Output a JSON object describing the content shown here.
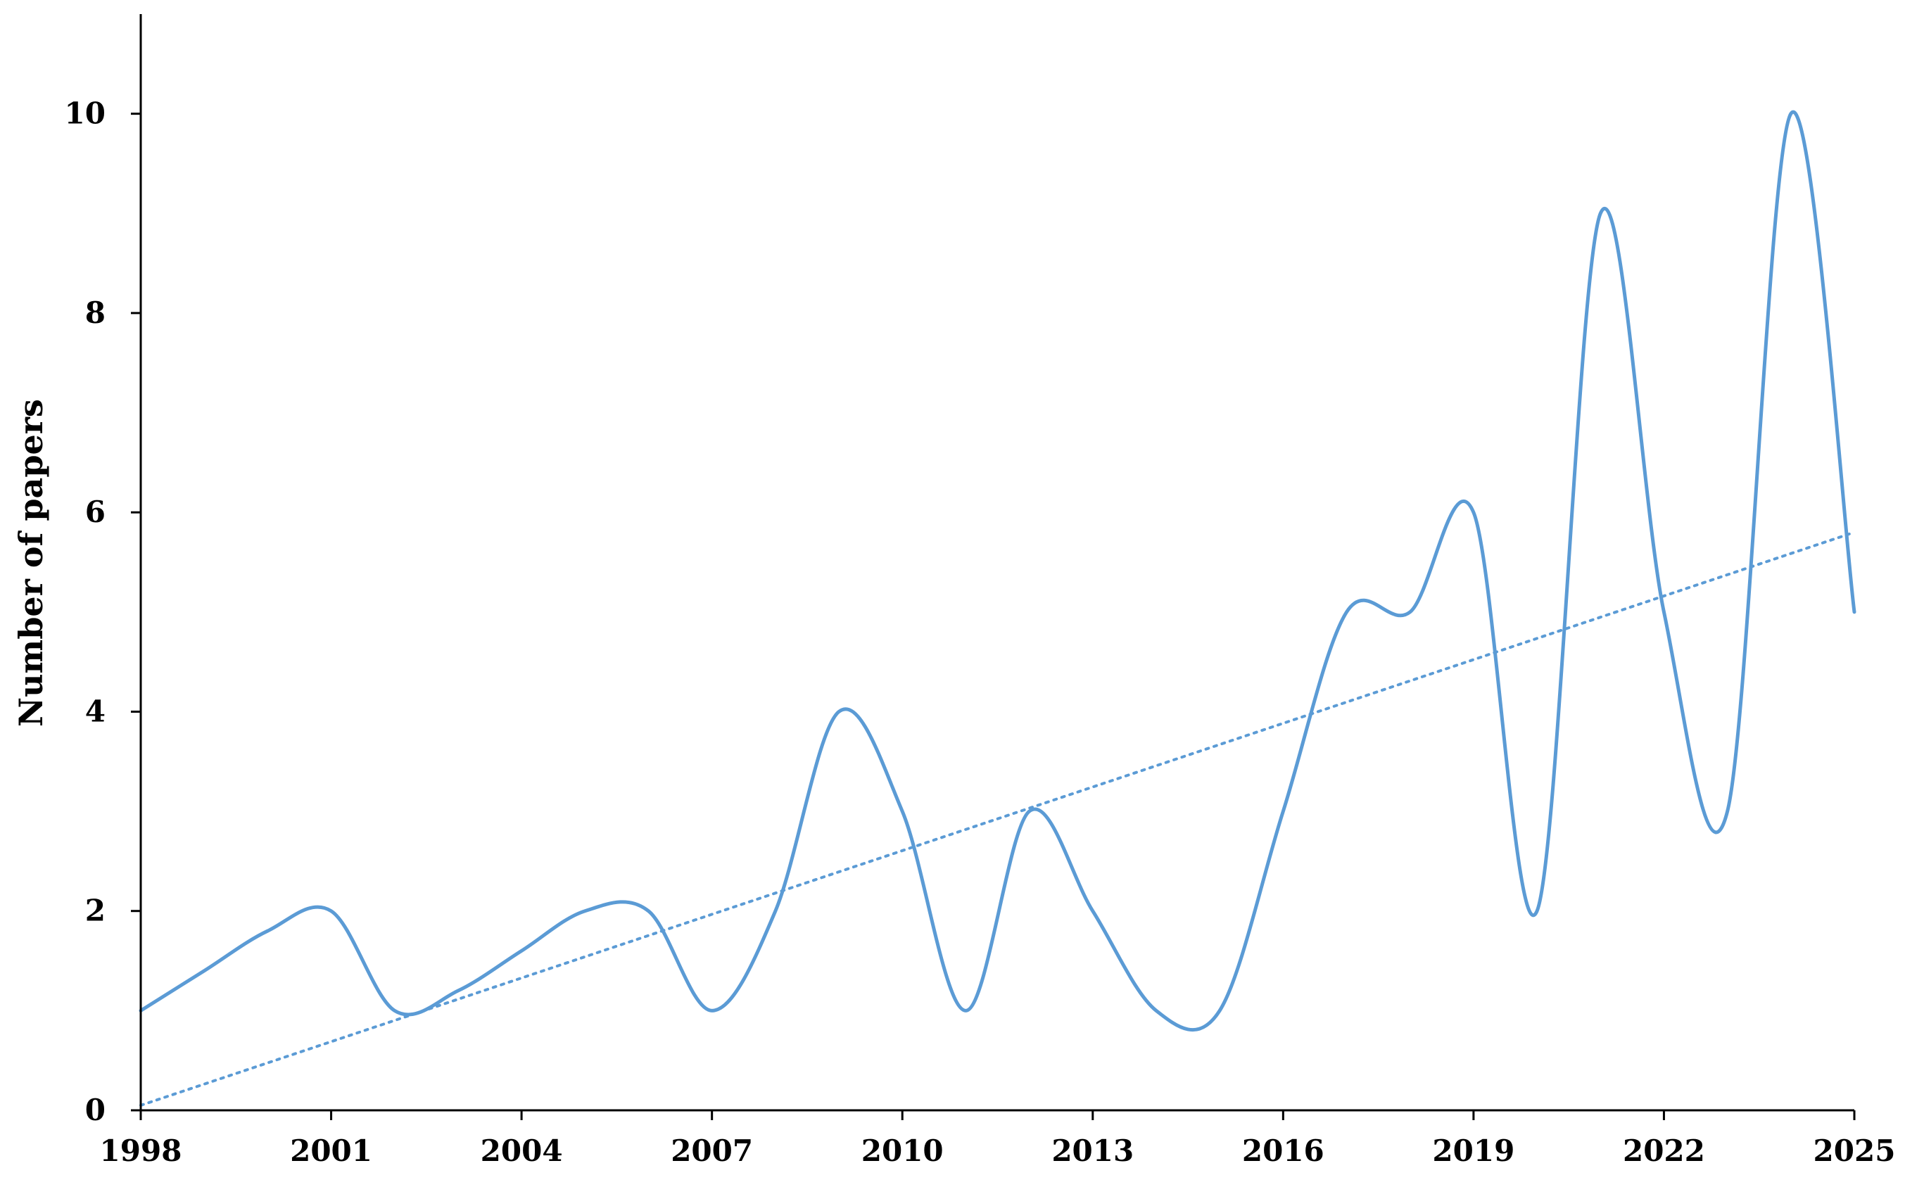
{
  "chart_data": {
    "type": "line",
    "title": "",
    "xlabel": "",
    "ylabel": "Number of papers",
    "x": [
      1998,
      1999,
      2000,
      2001,
      2002,
      2003,
      2004,
      2005,
      2006,
      2007,
      2008,
      2009,
      2010,
      2011,
      2012,
      2013,
      2014,
      2015,
      2016,
      2017,
      2018,
      2019,
      2020,
      2021,
      2022,
      2023,
      2024,
      2025
    ],
    "series": [
      {
        "values": [
          1,
          1.4,
          1.8,
          2,
          1,
          1.2,
          1.6,
          2,
          2,
          1,
          2,
          4,
          3,
          1,
          3,
          2,
          1,
          1,
          3,
          5,
          5,
          6,
          2,
          9,
          5,
          3,
          10,
          5
        ],
        "color": "#5b9bd5",
        "smooth": true
      }
    ],
    "trendline": {
      "type": "linear",
      "start": [
        1998,
        0.05
      ],
      "end": [
        2025,
        5.8
      ],
      "color": "#5b9bd5",
      "style": "dotted"
    },
    "xlim": [
      1998,
      2025
    ],
    "ylim": [
      0,
      11
    ],
    "xticks": [
      "1998",
      "2001",
      "2004",
      "2007",
      "2010",
      "2013",
      "2016",
      "2019",
      "2022",
      "2025"
    ],
    "yticks": [
      "0",
      "2",
      "4",
      "6",
      "8",
      "10"
    ],
    "grid": false,
    "legend": "none"
  }
}
